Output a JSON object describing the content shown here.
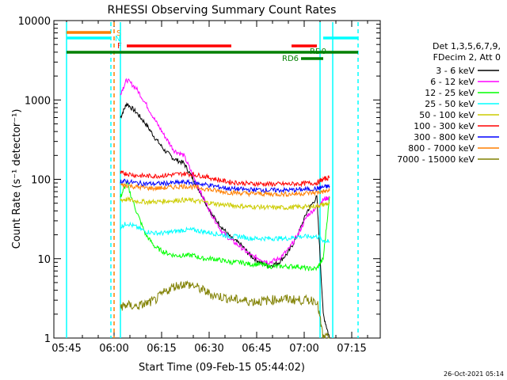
{
  "chart_data": {
    "type": "line",
    "title": "RHESSI Observing Summary Count Rates",
    "xlabel": "Start Time (09-Feb-15 05:44:02)",
    "ylabel": "Count Rate (s⁻¹ detector⁻¹)",
    "y_scale": "log",
    "ylim": [
      1,
      10000
    ],
    "xlim": [
      "05:41",
      "07:24"
    ],
    "x_ticks": [
      "05:45",
      "06:00",
      "06:15",
      "06:30",
      "06:45",
      "07:00",
      "07:15"
    ],
    "y_ticks": [
      "1",
      "10",
      "100",
      "1000",
      "10000"
    ],
    "legend_header": [
      "Det 1,3,5,6,7,9,",
      "FDecim 2, Att 0"
    ],
    "legend_position": "right",
    "timestamp": "26-Oct-2021 05:14",
    "flag_labels": {
      "S": "S",
      "N": "N",
      "F": "F",
      "RD6": "RD6",
      "RD0": "RD0"
    },
    "flags": [
      {
        "name": "S",
        "color": "#ff7f00",
        "segments": [
          [
            "05:45",
            "05:59"
          ]
        ]
      },
      {
        "name": "N",
        "color": "#00ffff",
        "segments": [
          [
            "05:45",
            "05:59"
          ],
          [
            "07:06",
            "07:17"
          ]
        ]
      },
      {
        "name": "F",
        "color": "#ff0000",
        "segments": [
          [
            "06:04",
            "06:37"
          ],
          [
            "06:56",
            "07:04"
          ]
        ]
      },
      {
        "name": "RD0",
        "color": "#008000",
        "segments": [
          [
            "05:45",
            "07:17"
          ]
        ]
      },
      {
        "name": "RD6",
        "color": "#008000",
        "segments": [
          [
            "06:59",
            "07:06"
          ]
        ]
      }
    ],
    "vertical_lines": [
      {
        "time": "05:45",
        "color": "#00ffff",
        "style": "solid"
      },
      {
        "time": "05:59",
        "color": "#00ffff",
        "style": "dashed"
      },
      {
        "time": "06:00",
        "color": "#ff7f00",
        "style": "dashed"
      },
      {
        "time": "06:02",
        "color": "#00ffff",
        "style": "solid"
      },
      {
        "time": "07:05",
        "color": "#00ffff",
        "style": "solid"
      },
      {
        "time": "07:09",
        "color": "#00ffff",
        "style": "solid"
      },
      {
        "time": "07:17",
        "color": "#00ffff",
        "style": "dashed"
      }
    ],
    "x": [
      "06:02",
      "06:04",
      "06:07",
      "06:10",
      "06:13",
      "06:16",
      "06:19",
      "06:22",
      "06:25",
      "06:28",
      "06:31",
      "06:34",
      "06:37",
      "06:40",
      "06:43",
      "06:46",
      "06:49",
      "06:52",
      "06:55",
      "06:58",
      "07:01",
      "07:04",
      "07:06",
      "07:08"
    ],
    "series": [
      {
        "name": "3 - 6 keV",
        "color": "#000000",
        "values": [
          600,
          900,
          700,
          500,
          330,
          230,
          180,
          160,
          100,
          60,
          35,
          25,
          18,
          15,
          11,
          9,
          8,
          9,
          12,
          20,
          40,
          60,
          2,
          1
        ]
      },
      {
        "name": "6 - 12 keV",
        "color": "#ff00ff",
        "values": [
          1200,
          1800,
          1400,
          900,
          550,
          350,
          230,
          200,
          110,
          60,
          35,
          22,
          17,
          14,
          11,
          10,
          9,
          10,
          13,
          20,
          35,
          45,
          55,
          60
        ]
      },
      {
        "name": "12 - 25 keV",
        "color": "#00ff00",
        "values": [
          60,
          90,
          40,
          20,
          14,
          12,
          11,
          11,
          11,
          10,
          10,
          9.5,
          9,
          9,
          8.5,
          8.5,
          8,
          8,
          8,
          8,
          7.5,
          7.5,
          10,
          60
        ]
      },
      {
        "name": "25 - 50 keV",
        "color": "#00ffff",
        "values": [
          25,
          28,
          25,
          22,
          21,
          21,
          22,
          23,
          23,
          22,
          21,
          20,
          19,
          19,
          18,
          18,
          18,
          18,
          18,
          19,
          19,
          19,
          17,
          16
        ]
      },
      {
        "name": "50 - 100 keV",
        "color": "#cccc00",
        "values": [
          55,
          56,
          53,
          52,
          52,
          53,
          54,
          55,
          54,
          52,
          50,
          48,
          47,
          46,
          45,
          45,
          44,
          44,
          44,
          45,
          45,
          46,
          48,
          50
        ]
      },
      {
        "name": "100 - 300 keV",
        "color": "#ff0000",
        "values": [
          120,
          118,
          112,
          110,
          110,
          112,
          115,
          118,
          115,
          110,
          103,
          96,
          92,
          90,
          88,
          88,
          87,
          87,
          87,
          88,
          89,
          90,
          100,
          105
        ]
      },
      {
        "name": "300 - 800 keV",
        "color": "#0000ff",
        "values": [
          95,
          94,
          90,
          88,
          88,
          89,
          90,
          92,
          90,
          87,
          83,
          79,
          76,
          75,
          74,
          74,
          73,
          73,
          73,
          74,
          75,
          76,
          80,
          82
        ]
      },
      {
        "name": "800 - 7000 keV",
        "color": "#ff7f00",
        "values": [
          85,
          84,
          80,
          78,
          77,
          78,
          80,
          82,
          80,
          77,
          73,
          70,
          68,
          67,
          66,
          66,
          65,
          65,
          65,
          66,
          67,
          68,
          70,
          72
        ]
      },
      {
        "name": "7000 - 15000 keV",
        "color": "#808000",
        "values": [
          2.5,
          2.6,
          2.5,
          2.7,
          3.0,
          3.8,
          4.5,
          4.8,
          4.6,
          4.0,
          3.5,
          3.3,
          3.1,
          3.0,
          2.9,
          2.9,
          3.0,
          3.1,
          3.1,
          3.0,
          3.0,
          3.0,
          1,
          1
        ]
      }
    ]
  }
}
